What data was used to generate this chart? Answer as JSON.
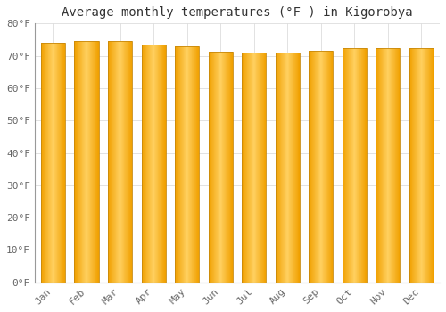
{
  "title": "Average monthly temperatures (°F ) in Kigorobya",
  "months": [
    "Jan",
    "Feb",
    "Mar",
    "Apr",
    "May",
    "Jun",
    "Jul",
    "Aug",
    "Sep",
    "Oct",
    "Nov",
    "Dec"
  ],
  "values": [
    73.9,
    74.5,
    74.5,
    73.6,
    72.9,
    71.4,
    70.9,
    71.1,
    71.6,
    72.5,
    72.3,
    72.5
  ],
  "ylim": [
    0,
    80
  ],
  "yticks": [
    0,
    10,
    20,
    30,
    40,
    50,
    60,
    70,
    80
  ],
  "ytick_labels": [
    "0°F",
    "10°F",
    "20°F",
    "30°F",
    "40°F",
    "50°F",
    "60°F",
    "70°F",
    "80°F"
  ],
  "bar_color_center": "#FFD060",
  "bar_color_edge": "#F0A000",
  "bar_outline_color": "#C8880A",
  "background_color": "#FFFFFF",
  "grid_color": "#DDDDDD",
  "title_fontsize": 10,
  "tick_fontsize": 8,
  "bar_width": 0.72
}
